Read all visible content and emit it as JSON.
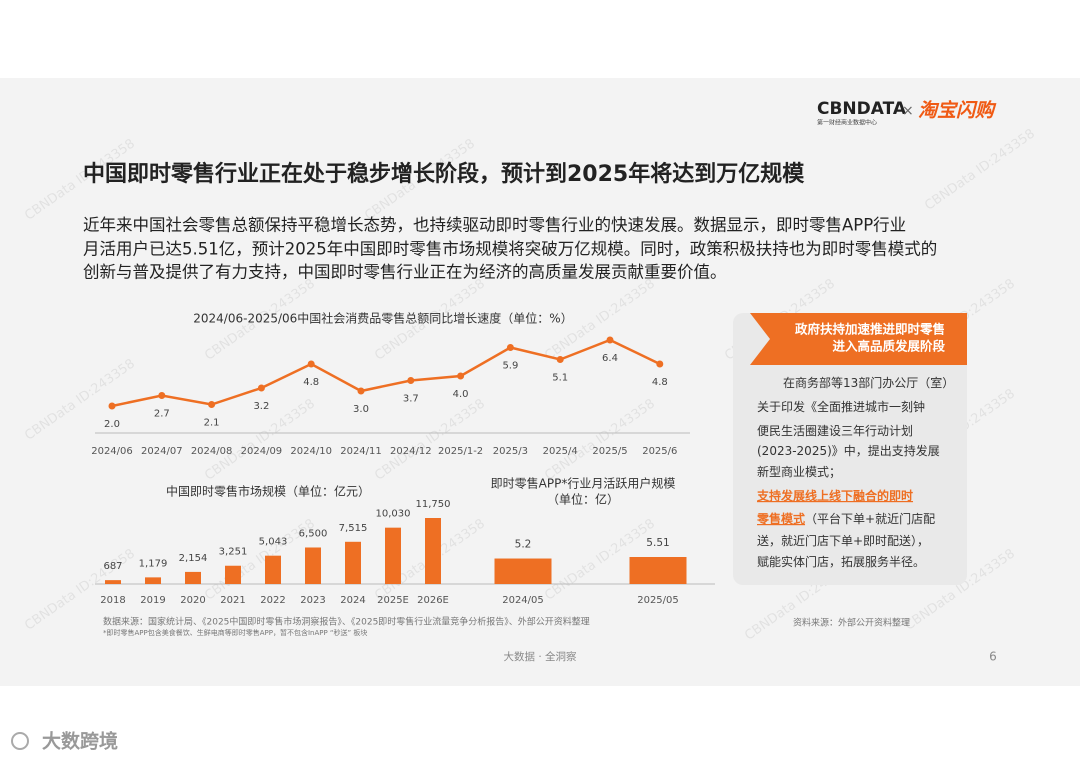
{
  "header": {
    "logo": "CBNDATA",
    "logo_sub": "第一财经商业数据中心",
    "cross": "×",
    "partner": "淘宝闪购"
  },
  "title": "中国即时零售行业正在处于稳步增长阶段，预计到2025年将达到万亿规模",
  "paragraph": [
    "近年来中国社会零售总额保持平稳增长态势，也持续驱动即时零售行业的快速发展。数据显示，即时零售APP行业",
    "月活用户已达5.51亿，预计2025年中国即时零售市场规模将突破万亿规模。同时，政策积极扶持也为即时零售模式的",
    "创新与普及提供了有力支持，中国即时零售行业正在为经济的高质量发展贡献重要价值。"
  ],
  "chart_data": [
    {
      "type": "line",
      "title": "2024/06-2025/06中国社会消费品零售总额同比增长速度（单位：%）",
      "categories": [
        "2024/06",
        "2024/07",
        "2024/08",
        "2024/09",
        "2024/10",
        "2024/11",
        "2024/12",
        "2025/1-2",
        "2025/3",
        "2025/4",
        "2025/5",
        "2025/6"
      ],
      "values": [
        2.0,
        2.7,
        2.1,
        3.2,
        4.8,
        3.0,
        3.7,
        4.0,
        5.9,
        5.1,
        6.4,
        4.8
      ],
      "value_labels": [
        "2.0",
        "2.7",
        "2.1",
        "3.2",
        "4.8",
        "3.0",
        "3.7",
        "4.0",
        "5.9",
        "5.1",
        "6.4",
        "4.8"
      ],
      "color": "#ee6f23"
    },
    {
      "type": "bar",
      "title": "中国即时零售市场规模（单位：亿元）",
      "categories": [
        "2018",
        "2019",
        "2020",
        "2021",
        "2022",
        "2023",
        "2024",
        "2025E",
        "2026E"
      ],
      "values": [
        687,
        1179,
        2154,
        3251,
        5043,
        6500,
        7515,
        10030,
        11750
      ],
      "value_labels": [
        "687",
        "1,179",
        "2,154",
        "3,251",
        "5,043",
        "6,500",
        "7,515",
        "10,030",
        "11,750"
      ],
      "color": "#ee6f23"
    },
    {
      "type": "bar",
      "title": "即时零售APP*行业月活跃用户规模",
      "subtitle": "（单位：亿）",
      "categories": [
        "2024/05",
        "2025/05"
      ],
      "values": [
        5.2,
        5.51
      ],
      "color": "#ee6f23"
    }
  ],
  "sources": {
    "left": "数据来源：国家统计局、《2025中国即时零售市场洞察报告》、《2025即时零售行业流量竞争分析报告》、外部公开资料整理",
    "note": "*即时零售APP包含美食餐饮、生鲜电商等即时零售APP，暂不包含InAPP “秒送” 板块",
    "right": "资料来源：外部公开资料整理"
  },
  "sidebar": {
    "heading": [
      "政府扶持加速推进即时零售",
      "进入高品质发展阶段"
    ],
    "lines": [
      [
        {
          "text": "在商务部等13部门办公厅（室）"
        }
      ],
      [
        {
          "text": "关于印发《全面推进城市一刻钟"
        }
      ],
      [
        {
          "text": "便民生活圈建设三年行动计划"
        }
      ],
      [
        {
          "text": "(2023-2025)》中，提出支持发展"
        }
      ],
      [
        {
          "text": "新型商业模式；"
        }
      ],
      [
        {
          "text": "支持发展线上线下融合的即时",
          "highlight": true
        }
      ],
      [
        {
          "text": "零售模式",
          "highlight": true
        },
        {
          "text": "（平台下单+就近门店配"
        }
      ],
      [
        {
          "text": "送，就近门店下单+即时配送），"
        }
      ],
      [
        {
          "text": "赋能实体门店，拓展服务半径。"
        }
      ]
    ]
  },
  "footer": {
    "tagline": "大数据 · 全洞察",
    "page": "6",
    "brand": "大数跨境"
  },
  "watermark": "CBNData ID:243358"
}
